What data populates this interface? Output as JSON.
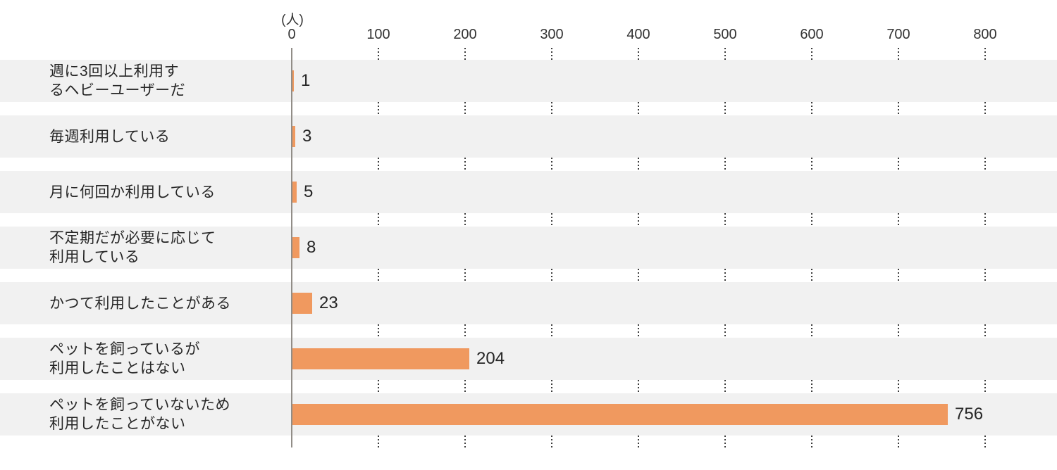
{
  "chart_data": {
    "type": "bar",
    "orientation": "horizontal",
    "title": "",
    "unit": "(人)",
    "xlabel": "",
    "ylabel": "",
    "categories": [
      "週に3回以上利用するヘビーユーザーだ",
      "毎週利用している",
      "月に何回か利用している",
      "不定期だが必要に応じて利用している",
      "かつて利用したことがある",
      "ペットを飼っているが利用したことはない",
      "ペットを飼っていないため利用したことがない"
    ],
    "category_label_lines": [
      [
        "週に3回以上利用す",
        "るヘビーユーザーだ"
      ],
      [
        "毎週利用している"
      ],
      [
        "月に何回か利用している"
      ],
      [
        "不定期だが必要に応じて",
        "利用している"
      ],
      [
        "かつて利用したことがある"
      ],
      [
        "ペットを飼っているが",
        "利用したことはない"
      ],
      [
        "ペットを飼っていないため",
        "利用したことがない"
      ]
    ],
    "values": [
      1,
      3,
      5,
      8,
      23,
      204,
      756
    ],
    "xlim": [
      0,
      800
    ],
    "xticks": [
      0,
      100,
      200,
      300,
      400,
      500,
      600,
      700,
      800
    ],
    "grid": "dotted vertical gridlines at each tick, visible only in gaps between row bands",
    "legend": "none",
    "colors": {
      "bar": "#F0995F",
      "row_band": "#F1F1F1",
      "axis_line": "#918D87",
      "grid_dot": "#3D3D3D",
      "text": "#262626",
      "background": "#FFFFFF"
    }
  }
}
